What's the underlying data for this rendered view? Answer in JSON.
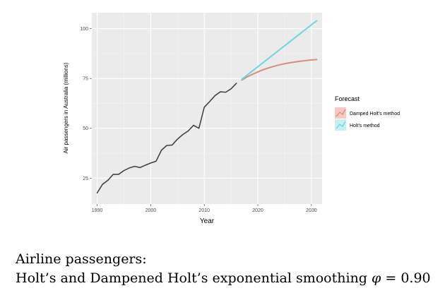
{
  "chart_data": {
    "type": "line",
    "xlabel": "Year",
    "ylabel": "Air passengers in Australia (millions)",
    "xlim": [
      1989,
      2032
    ],
    "ylim": [
      12,
      108
    ],
    "x_ticks": [
      1990,
      2000,
      2010,
      2020,
      2030
    ],
    "y_ticks": [
      25,
      50,
      75,
      100
    ],
    "grid": true,
    "legend_position": "right",
    "legend_title": "Forecast",
    "series": [
      {
        "role": "observed",
        "color": "#444444",
        "points": [
          [
            1990,
            17.6
          ],
          [
            1991,
            21.9
          ],
          [
            1992,
            23.9
          ],
          [
            1993,
            26.9
          ],
          [
            1994,
            26.9
          ],
          [
            1995,
            28.8
          ],
          [
            1996,
            30.1
          ],
          [
            1997,
            30.9
          ],
          [
            1998,
            30.3
          ],
          [
            1999,
            31.5
          ],
          [
            2000,
            32.6
          ],
          [
            2001,
            33.5
          ],
          [
            2002,
            39.0
          ],
          [
            2003,
            41.4
          ],
          [
            2004,
            41.6
          ],
          [
            2005,
            44.6
          ],
          [
            2006,
            46.9
          ],
          [
            2007,
            48.7
          ],
          [
            2008,
            51.5
          ],
          [
            2009,
            50.0
          ],
          [
            2010,
            60.6
          ],
          [
            2011,
            63.4
          ],
          [
            2012,
            66.4
          ],
          [
            2013,
            68.3
          ],
          [
            2014,
            68.1
          ],
          [
            2015,
            69.8
          ],
          [
            2016,
            72.6
          ]
        ]
      },
      {
        "name": "Damped Holt's method",
        "color": "#D98C82",
        "points": [
          [
            2017,
            74.2
          ],
          [
            2018,
            75.8
          ],
          [
            2019,
            77.1
          ],
          [
            2020,
            78.3
          ],
          [
            2021,
            79.4
          ],
          [
            2022,
            80.3
          ],
          [
            2023,
            81.1
          ],
          [
            2024,
            81.8
          ],
          [
            2025,
            82.4
          ],
          [
            2026,
            82.9
          ],
          [
            2027,
            83.3
          ],
          [
            2028,
            83.7
          ],
          [
            2029,
            84.0
          ],
          [
            2030,
            84.3
          ],
          [
            2031,
            84.5
          ]
        ]
      },
      {
        "name": "Holt's method",
        "color": "#6ED6DC",
        "points": [
          [
            2017,
            74.6
          ],
          [
            2031,
            104.0
          ]
        ]
      }
    ]
  },
  "caption": {
    "line1": "Airline passengers:",
    "line2_prefix": "Holt’s and Dampened Holt’s exponential smoothing ",
    "phi_symbol": "φ",
    "phi_equals": " = ",
    "phi_value": "0.90"
  }
}
